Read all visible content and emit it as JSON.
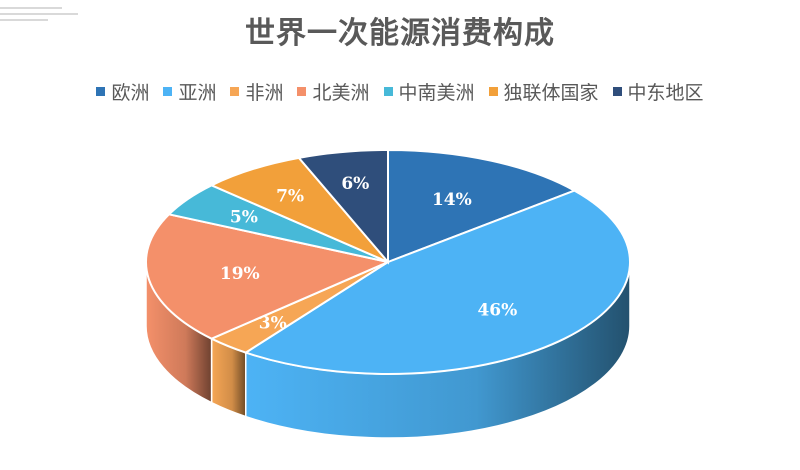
{
  "chart_data": {
    "type": "pie",
    "title": "世界一次能源消费构成",
    "legend_position": "top",
    "categories": [
      "欧洲",
      "亚洲",
      "非洲",
      "北美洲",
      "中南美洲",
      "独联体国家",
      "中东地区"
    ],
    "values": [
      14,
      46,
      3,
      19,
      5,
      7,
      6
    ],
    "labels": [
      "14%",
      "46%",
      "3%",
      "19%",
      "5%",
      "7%",
      "6%"
    ],
    "colors": [
      "#2E74B5",
      "#4DB3F5",
      "#F6A655",
      "#F4906A",
      "#47B9D8",
      "#F2A03A",
      "#2F4E7B"
    ]
  }
}
